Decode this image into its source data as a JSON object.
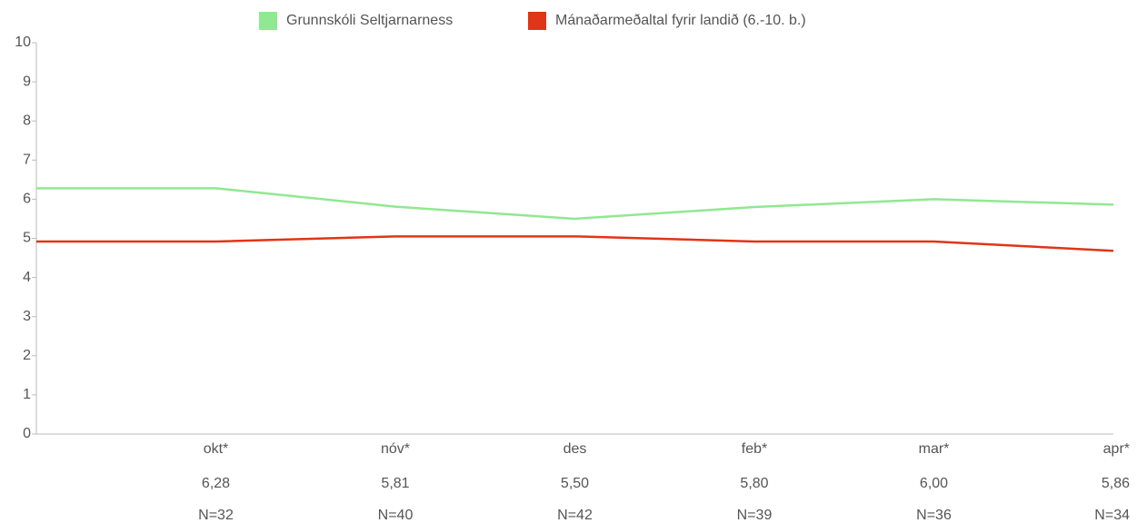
{
  "chart_data": {
    "type": "line",
    "categories": [
      null,
      "okt*",
      "nóv*",
      "des",
      "feb*",
      "mar*",
      "apr*"
    ],
    "series": [
      {
        "name": "Grunnskóli Seltjarnarness",
        "color": "#90e890",
        "values": [
          6.28,
          6.28,
          5.81,
          5.5,
          5.8,
          6.0,
          5.86
        ],
        "value_labels": [
          null,
          "6,28",
          "5,81",
          "5,50",
          "5,80",
          "6,00",
          "5,86"
        ]
      },
      {
        "name": "Mánaðarmeðaltal fyrir landið (6.-10. b.)",
        "color": "#e03516",
        "values": [
          4.92,
          4.92,
          5.05,
          5.05,
          4.92,
          4.92,
          4.68
        ]
      }
    ],
    "n_labels": [
      null,
      "N=32",
      "N=40",
      "N=42",
      "N=39",
      "N=36",
      "N=34"
    ],
    "ylim": [
      0,
      10
    ],
    "yticks": [
      0,
      1,
      2,
      3,
      4,
      5,
      6,
      7,
      8,
      9,
      10
    ],
    "legend": "top",
    "grid": false
  }
}
